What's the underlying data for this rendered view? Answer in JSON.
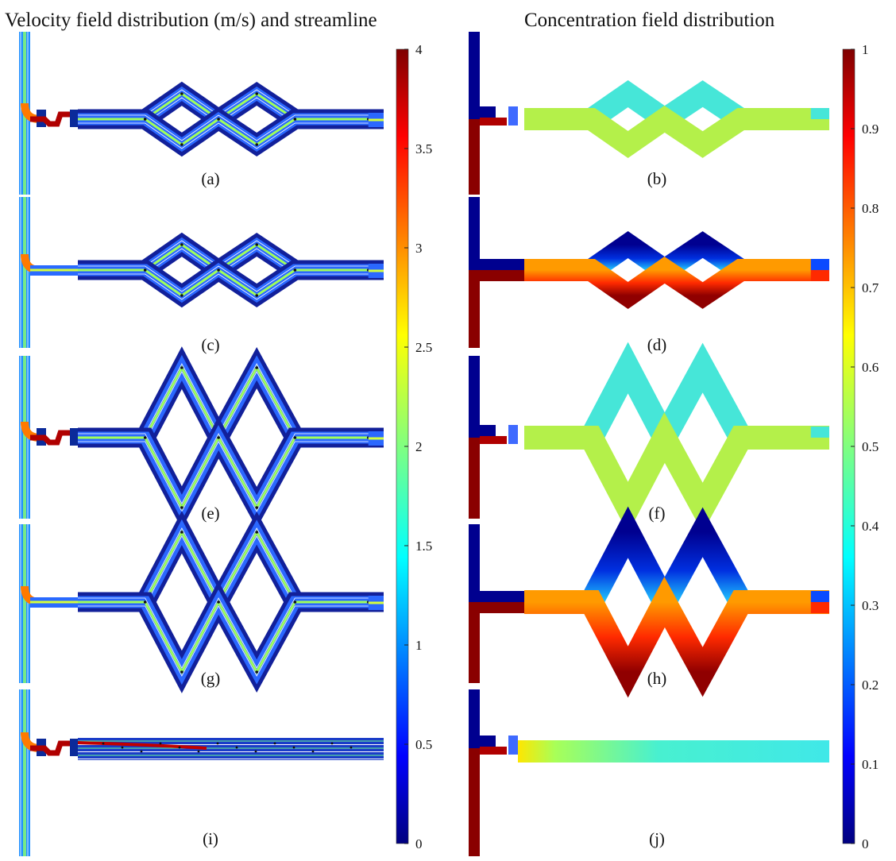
{
  "titles": {
    "left": "Velocity field distribution (m/s) and streamline",
    "right": "Concentration field distribution"
  },
  "panel_labels": [
    "(a)",
    "(b)",
    "(c)",
    "(d)",
    "(e)",
    "(f)",
    "(g)",
    "(h)",
    "(i)",
    "(j)"
  ],
  "colorbars": {
    "velocity": {
      "ticks": [
        "0",
        "0.5",
        "1",
        "1.5",
        "2",
        "2.5",
        "3",
        "3.5",
        "4"
      ],
      "range": [
        0,
        4
      ],
      "colormap": "jet"
    },
    "concentration": {
      "ticks": [
        "0",
        "0.1",
        "0.2",
        "0.3",
        "0.4",
        "0.5",
        "0.6",
        "0.7",
        "0.8",
        "0.9",
        "1"
      ],
      "range": [
        0,
        1
      ],
      "colormap": "jet"
    }
  },
  "colors": {
    "jet_low": "#00007f",
    "jet_mid_low": "#0061ff",
    "jet_cyan": "#40ffe0",
    "jet_green_yellow": "#c8ff40",
    "jet_orange": "#ff5a00",
    "jet_high": "#7f0000",
    "mixed_cyan": "#46e6d8",
    "mixed_yellow": "#b4f04a",
    "streamline": "#ffffff",
    "arrow": "#111111"
  }
}
